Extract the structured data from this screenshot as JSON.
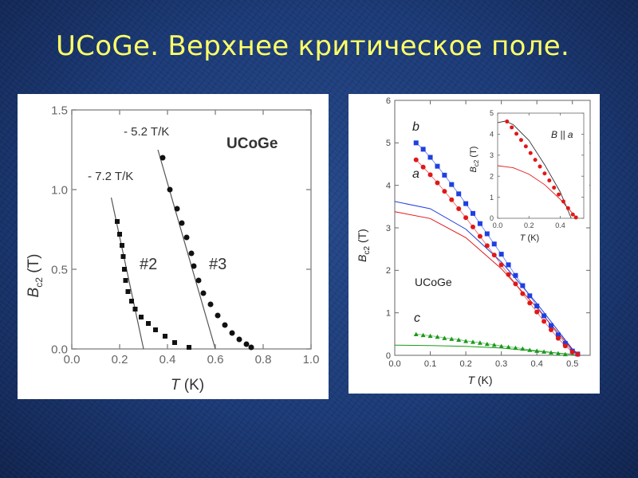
{
  "slide": {
    "title": "UCoGe. Верхнее критическое поле."
  },
  "colors": {
    "background": "#1d3a74",
    "title": "#ffff66",
    "series_b": "#1f3fe0",
    "series_a": "#e01818",
    "series_c": "#1a9a1a"
  },
  "chart_data": [
    {
      "type": "scatter",
      "title": "UCoGe",
      "xlabel": "T (K)",
      "ylabel": "B_c2 (T)",
      "xlim": [
        0.0,
        1.0
      ],
      "ylim": [
        0.0,
        1.5
      ],
      "xticks": [
        "0.0",
        "0.2",
        "0.4",
        "0.6",
        "0.8",
        "1.0"
      ],
      "yticks": [
        "0.0",
        "0.5",
        "1.0",
        "1.5"
      ],
      "grid": false,
      "annotations": [
        "- 5.2 T/K",
        "- 7.2 T/K",
        "#2",
        "#3"
      ],
      "series": [
        {
          "name": "#2",
          "marker": "square",
          "x": [
            0.19,
            0.2,
            0.21,
            0.215,
            0.22,
            0.225,
            0.235,
            0.25,
            0.265,
            0.29,
            0.32,
            0.35,
            0.39,
            0.43,
            0.49
          ],
          "y": [
            0.8,
            0.72,
            0.65,
            0.58,
            0.5,
            0.43,
            0.36,
            0.3,
            0.25,
            0.2,
            0.16,
            0.12,
            0.08,
            0.04,
            0.01
          ]
        },
        {
          "name": "#3",
          "marker": "circle",
          "x": [
            0.38,
            0.41,
            0.44,
            0.46,
            0.48,
            0.5,
            0.51,
            0.53,
            0.55,
            0.58,
            0.61,
            0.64,
            0.67,
            0.7,
            0.73,
            0.75
          ],
          "y": [
            1.2,
            1.0,
            0.88,
            0.79,
            0.7,
            0.6,
            0.52,
            0.43,
            0.35,
            0.28,
            0.21,
            0.15,
            0.1,
            0.06,
            0.03,
            0.01
          ]
        }
      ],
      "fit_lines": [
        {
          "x": [
            0.165,
            0.3
          ],
          "y": [
            0.95,
            0.0
          ]
        },
        {
          "x": [
            0.36,
            0.6
          ],
          "y": [
            1.25,
            0.0
          ]
        }
      ]
    },
    {
      "type": "scatter",
      "title": "UCoGe",
      "xlabel": "T (K)",
      "ylabel": "B_c2 (T)",
      "xlim": [
        0.0,
        0.55
      ],
      "ylim": [
        0,
        6
      ],
      "xticks": [
        "0.0",
        "0.1",
        "0.2",
        "0.3",
        "0.4",
        "0.5"
      ],
      "yticks": [
        "0",
        "1",
        "2",
        "3",
        "4",
        "5",
        "6"
      ],
      "grid": false,
      "series": [
        {
          "name": "b",
          "marker": "square",
          "x": [
            0.06,
            0.08,
            0.1,
            0.12,
            0.14,
            0.16,
            0.18,
            0.2,
            0.22,
            0.24,
            0.26,
            0.28,
            0.3,
            0.32,
            0.34,
            0.36,
            0.38,
            0.4,
            0.42,
            0.44,
            0.46,
            0.48,
            0.5,
            0.515
          ],
          "y": [
            5.0,
            4.85,
            4.66,
            4.45,
            4.24,
            4.02,
            3.8,
            3.57,
            3.34,
            3.1,
            2.86,
            2.62,
            2.38,
            2.13,
            1.88,
            1.64,
            1.4,
            1.16,
            0.93,
            0.7,
            0.48,
            0.28,
            0.1,
            0.03
          ]
        },
        {
          "name": "a",
          "marker": "circle",
          "x": [
            0.06,
            0.08,
            0.1,
            0.12,
            0.14,
            0.16,
            0.18,
            0.2,
            0.22,
            0.24,
            0.26,
            0.28,
            0.3,
            0.32,
            0.34,
            0.36,
            0.38,
            0.4,
            0.42,
            0.44,
            0.46,
            0.48,
            0.5,
            0.515
          ],
          "y": [
            4.6,
            4.43,
            4.25,
            4.06,
            3.86,
            3.66,
            3.45,
            3.24,
            3.02,
            2.8,
            2.58,
            2.36,
            2.13,
            1.9,
            1.68,
            1.45,
            1.23,
            1.02,
            0.8,
            0.6,
            0.4,
            0.22,
            0.08,
            0.02
          ]
        },
        {
          "name": "c",
          "marker": "triangle",
          "x": [
            0.06,
            0.08,
            0.1,
            0.12,
            0.14,
            0.16,
            0.18,
            0.2,
            0.22,
            0.24,
            0.26,
            0.28,
            0.3,
            0.32,
            0.34,
            0.36,
            0.38,
            0.4,
            0.42,
            0.44,
            0.46,
            0.48
          ],
          "y": [
            0.5,
            0.48,
            0.46,
            0.44,
            0.41,
            0.39,
            0.37,
            0.34,
            0.32,
            0.3,
            0.27,
            0.25,
            0.22,
            0.2,
            0.18,
            0.16,
            0.13,
            0.11,
            0.09,
            0.07,
            0.05,
            0.03
          ]
        }
      ],
      "fit_curves": [
        {
          "series": "b",
          "x": [
            0.0,
            0.1,
            0.2,
            0.3,
            0.4,
            0.5,
            0.52
          ],
          "y": [
            3.62,
            3.45,
            2.97,
            2.2,
            1.22,
            0.15,
            0.0
          ]
        },
        {
          "series": "a",
          "x": [
            0.0,
            0.1,
            0.2,
            0.3,
            0.4,
            0.5,
            0.52
          ],
          "y": [
            3.38,
            3.22,
            2.77,
            2.04,
            1.12,
            0.13,
            0.0
          ]
        },
        {
          "series": "c",
          "x": [
            0.0,
            0.1,
            0.2,
            0.3,
            0.4,
            0.5,
            0.52
          ],
          "y": [
            0.24,
            0.23,
            0.21,
            0.17,
            0.1,
            0.02,
            0.0
          ]
        }
      ],
      "labels": [
        "b",
        "a",
        "c",
        "UCoGe"
      ],
      "inset": {
        "title": "B || a",
        "xlabel": "T (K)",
        "ylabel": "B_c2 (T)",
        "xlim": [
          0,
          0.55
        ],
        "ylim": [
          0,
          5
        ],
        "xticks": [
          "0.0",
          "0.2",
          "0.4"
        ],
        "yticks": [
          "0",
          "1",
          "2",
          "3",
          "4",
          "5"
        ],
        "series": [
          {
            "name": "a",
            "marker": "circle",
            "x": [
              0.06,
              0.09,
              0.12,
              0.15,
              0.18,
              0.21,
              0.24,
              0.27,
              0.3,
              0.33,
              0.36,
              0.39,
              0.42,
              0.45,
              0.48,
              0.5
            ],
            "y": [
              4.6,
              4.32,
              4.02,
              3.72,
              3.42,
              3.1,
              2.78,
              2.46,
              2.13,
              1.8,
              1.46,
              1.13,
              0.8,
              0.48,
              0.18,
              0.04
            ]
          }
        ],
        "fit_curves": [
          {
            "color": "#e01818",
            "x": [
              0.0,
              0.1,
              0.2,
              0.3,
              0.4,
              0.5
            ],
            "y": [
              2.5,
              2.4,
              2.1,
              1.6,
              0.9,
              0.05
            ]
          },
          {
            "color": "#333333",
            "x": [
              0.0,
              0.05,
              0.1,
              0.2,
              0.3,
              0.4,
              0.47
            ],
            "y": [
              4.55,
              4.62,
              4.45,
              3.7,
              2.55,
              1.25,
              0.0
            ]
          }
        ]
      }
    }
  ]
}
